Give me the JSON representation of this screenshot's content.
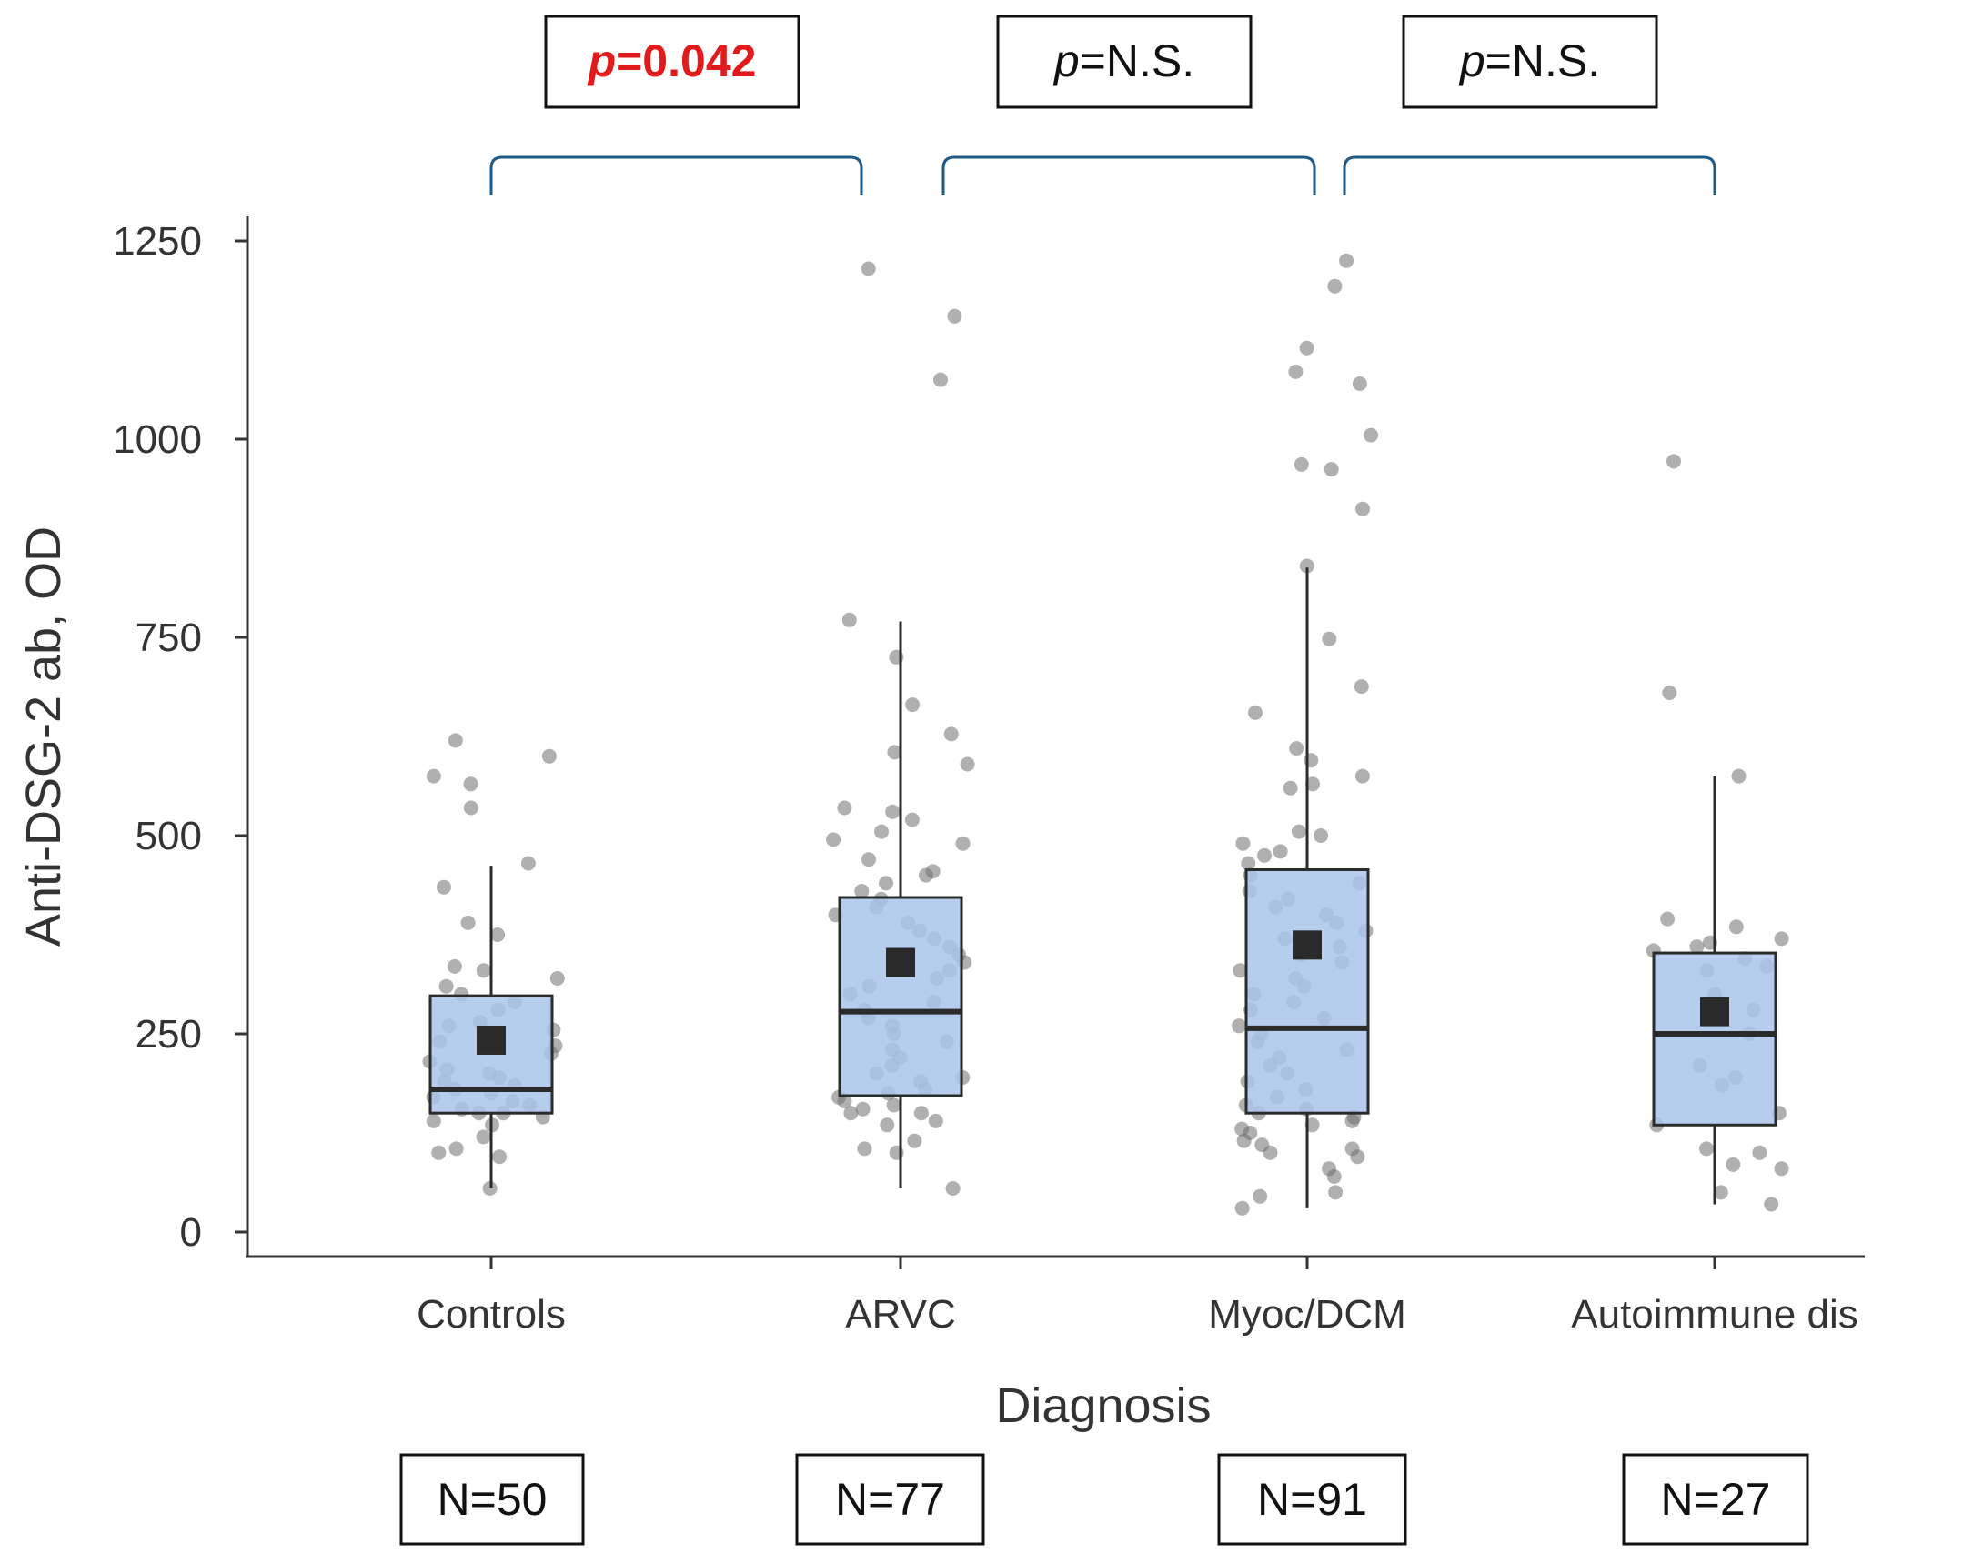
{
  "chart_data": {
    "type": "box",
    "xlabel": "Diagnosis",
    "ylabel": "Anti-DSG-2 ab, OD",
    "ylim": [
      0,
      1250
    ],
    "yticks": [
      0,
      250,
      500,
      750,
      1000,
      1250
    ],
    "categories": [
      "Controls",
      "ARVC",
      "Myoc/DCM",
      "Autoimmune dis"
    ],
    "n_labels": [
      "N=50",
      "N=77",
      "N=91",
      "N=27"
    ],
    "boxes": [
      {
        "category": "Controls",
        "whisker_low": 55,
        "q1": 150,
        "median": 180,
        "q3": 298,
        "whisker_high": 462,
        "mean": 242,
        "points": [
          55,
          95,
          100,
          105,
          120,
          135,
          140,
          145,
          150,
          150,
          155,
          160,
          165,
          170,
          175,
          180,
          185,
          190,
          195,
          200,
          205,
          215,
          225,
          235,
          240,
          245,
          255,
          260,
          265,
          280,
          290,
          300,
          310,
          320,
          330,
          335,
          375,
          390,
          435,
          465,
          535,
          565,
          575,
          600,
          620
        ]
      },
      {
        "category": "ARVC",
        "whisker_low": 55,
        "q1": 172,
        "median": 278,
        "q3": 422,
        "whisker_high": 770,
        "mean": 340,
        "points": [
          55,
          100,
          105,
          115,
          135,
          140,
          150,
          150,
          155,
          160,
          165,
          170,
          175,
          180,
          190,
          195,
          200,
          210,
          220,
          230,
          240,
          250,
          260,
          270,
          280,
          290,
          300,
          310,
          320,
          330,
          340,
          350,
          360,
          370,
          380,
          390,
          400,
          410,
          420,
          430,
          440,
          450,
          455,
          470,
          490,
          495,
          505,
          520,
          530,
          535,
          590,
          605,
          628,
          665,
          725,
          772,
          1075,
          1155,
          1215
        ]
      },
      {
        "category": "Myoc/DCM",
        "whisker_low": 30,
        "q1": 150,
        "median": 257,
        "q3": 457,
        "whisker_high": 838,
        "mean": 362,
        "points": [
          30,
          45,
          50,
          70,
          80,
          95,
          100,
          105,
          110,
          115,
          125,
          130,
          135,
          140,
          145,
          150,
          155,
          160,
          170,
          180,
          190,
          200,
          210,
          220,
          230,
          240,
          250,
          260,
          270,
          280,
          290,
          300,
          310,
          320,
          330,
          340,
          350,
          360,
          370,
          380,
          390,
          400,
          410,
          420,
          430,
          440,
          450,
          465,
          475,
          480,
          490,
          500,
          505,
          560,
          565,
          575,
          595,
          610,
          655,
          688,
          748,
          840,
          912,
          962,
          968,
          1005,
          1070,
          1085,
          1115,
          1193,
          1225
        ]
      },
      {
        "category": "Autoimmune dis",
        "whisker_low": 35,
        "q1": 135,
        "median": 250,
        "q3": 352,
        "whisker_high": 575,
        "mean": 278,
        "points": [
          35,
          50,
          80,
          85,
          100,
          105,
          135,
          150,
          185,
          195,
          210,
          250,
          280,
          300,
          330,
          335,
          345,
          355,
          360,
          365,
          370,
          385,
          395,
          575,
          680,
          972
        ]
      }
    ],
    "comparisons": [
      {
        "groups": [
          "Controls",
          "ARVC"
        ],
        "p_prefix": "p",
        "p_suffix": "=0.042",
        "highlight": true
      },
      {
        "groups": [
          "ARVC",
          "Myoc/DCM"
        ],
        "p_prefix": "p",
        "p_suffix": "=N.S.",
        "highlight": false
      },
      {
        "groups": [
          "Myoc/DCM",
          "Autoimmune dis"
        ],
        "p_prefix": "p",
        "p_suffix": "=N.S.",
        "highlight": false
      }
    ],
    "colors": {
      "box_fill": "#a9c4ea",
      "box_stroke": "#2b2b2b",
      "point": "#6f6f6f",
      "mean_marker": "#2a2a2a",
      "bracket": "#1f5a86",
      "highlight_text": "#e11b1b",
      "normal_text": "#111111"
    }
  }
}
